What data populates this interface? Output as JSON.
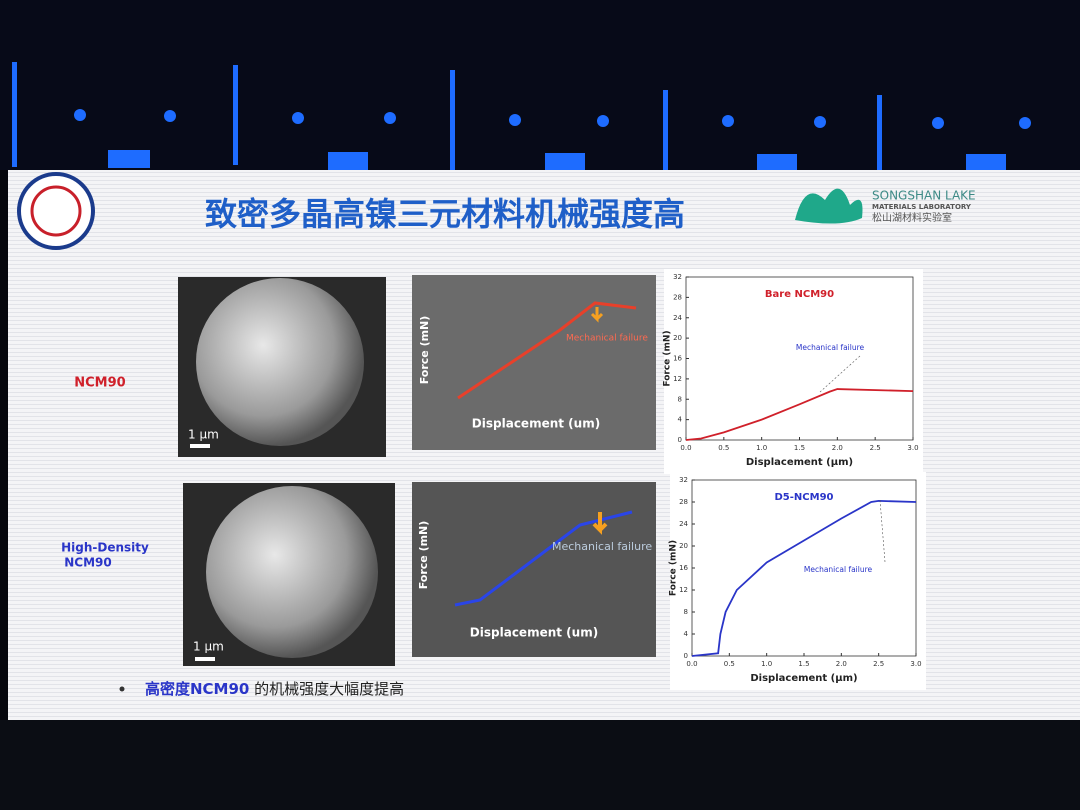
{
  "slide": {
    "title": "致密多晶高镍三元材料机械强度高",
    "lab": {
      "name": "SONGSHAN LAKE",
      "subtitle": "MATERIALS LABORATORY",
      "chinese": "松山湖材料实验室"
    },
    "rows": [
      {
        "label_lines": [
          "NCM90"
        ],
        "scale_bar": "1 μm"
      },
      {
        "label_lines": [
          "High-Density",
          "NCM90"
        ],
        "scale_bar": "1 μm"
      }
    ],
    "insets": [
      {
        "ylabel": "Force (mN)",
        "xlabel": "Displacement (um)",
        "annotation": "Mechanical failure"
      },
      {
        "ylabel": "Force (mN)",
        "xlabel": "Displacement (um)",
        "annotation": "Mechanical failure"
      }
    ],
    "bullet": {
      "highlight": "高密度NCM90",
      "rest": " 的机械强度大幅度提高"
    }
  },
  "chart_data": [
    {
      "type": "line",
      "title": "Bare NCM90",
      "xlabel": "Displacement (μm)",
      "ylabel": "Force (mN)",
      "annotation": "Mechanical failure",
      "color": "#d0202a",
      "x": [
        0,
        0.2,
        0.5,
        1.0,
        1.5,
        1.9,
        2.0,
        3.0
      ],
      "values": [
        0,
        0.3,
        1.5,
        4,
        7,
        9.5,
        10,
        9.6
      ],
      "xlim": [
        0,
        3
      ],
      "xticks": [
        {
          "value": 0,
          "label": "0.0"
        },
        0.5,
        {
          "value": 1,
          "label": "1.0"
        },
        1.5,
        {
          "value": 2,
          "label": "2.0"
        },
        2.5,
        {
          "value": 3,
          "label": "3.0"
        }
      ],
      "ylim": [
        0,
        32
      ],
      "yticks": [
        0,
        4,
        8,
        12,
        16,
        20,
        24,
        28,
        32
      ]
    },
    {
      "type": "line",
      "title": "D5-NCM90",
      "xlabel": "Displacement (μm)",
      "ylabel": "Force (mN)",
      "annotation": "Mechanical failure",
      "color": "#2a35c8",
      "x": [
        0,
        0.35,
        0.38,
        0.45,
        0.6,
        1.0,
        1.5,
        2.0,
        2.4,
        2.5,
        3.0
      ],
      "values": [
        0,
        0.5,
        4,
        8,
        12,
        17,
        21,
        25,
        28,
        28.2,
        28
      ],
      "xlim": [
        0,
        3
      ],
      "xticks": [
        {
          "value": 0,
          "label": "0.0"
        },
        0.5,
        {
          "value": 1,
          "label": "1.0"
        },
        1.5,
        {
          "value": 2,
          "label": "2.0"
        },
        2.5,
        {
          "value": 3,
          "label": "3.0"
        }
      ],
      "ylim": [
        0,
        32
      ],
      "yticks": [
        0,
        4,
        8,
        12,
        16,
        20,
        24,
        28,
        32
      ]
    }
  ]
}
